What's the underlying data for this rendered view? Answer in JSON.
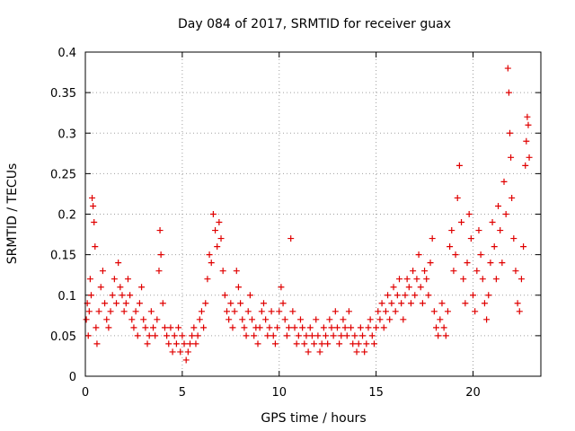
{
  "chart_data": {
    "type": "scatter",
    "title": "Day 084 of 2017, SRMTID for receiver guax",
    "xlabel": "GPS time / hours",
    "ylabel": "SRMTID / TECUs",
    "xlim": [
      0,
      23.5
    ],
    "ylim": [
      0,
      0.4
    ],
    "xticks": [
      0,
      5,
      10,
      15,
      20
    ],
    "xtick_labels": [
      "0",
      "5",
      "10",
      "15",
      "20"
    ],
    "yticks": [
      0,
      0.05,
      0.1,
      0.15,
      0.2,
      0.25,
      0.3,
      0.35,
      0.4
    ],
    "ytick_labels": [
      "0",
      "0.05",
      "0.1",
      "0.15",
      "0.2",
      "0.25",
      "0.3",
      "0.35",
      "0.4"
    ],
    "grid": true,
    "marker": "plus",
    "color": "#e00000",
    "series": [
      {
        "name": "SRMTID",
        "points": [
          [
            0.05,
            0.07
          ],
          [
            0.1,
            0.09
          ],
          [
            0.15,
            0.05
          ],
          [
            0.2,
            0.08
          ],
          [
            0.25,
            0.12
          ],
          [
            0.3,
            0.1
          ],
          [
            0.35,
            0.22
          ],
          [
            0.4,
            0.21
          ],
          [
            0.45,
            0.19
          ],
          [
            0.5,
            0.16
          ],
          [
            0.55,
            0.06
          ],
          [
            0.6,
            0.04
          ],
          [
            0.7,
            0.08
          ],
          [
            0.8,
            0.11
          ],
          [
            0.9,
            0.13
          ],
          [
            1.0,
            0.09
          ],
          [
            1.1,
            0.07
          ],
          [
            1.2,
            0.06
          ],
          [
            1.3,
            0.08
          ],
          [
            1.4,
            0.1
          ],
          [
            1.5,
            0.12
          ],
          [
            1.6,
            0.09
          ],
          [
            1.7,
            0.14
          ],
          [
            1.8,
            0.11
          ],
          [
            1.9,
            0.1
          ],
          [
            2.0,
            0.08
          ],
          [
            2.1,
            0.09
          ],
          [
            2.2,
            0.12
          ],
          [
            2.3,
            0.1
          ],
          [
            2.4,
            0.07
          ],
          [
            2.5,
            0.06
          ],
          [
            2.6,
            0.08
          ],
          [
            2.7,
            0.05
          ],
          [
            2.8,
            0.09
          ],
          [
            2.9,
            0.11
          ],
          [
            3.0,
            0.07
          ],
          [
            3.1,
            0.06
          ],
          [
            3.2,
            0.04
          ],
          [
            3.3,
            0.05
          ],
          [
            3.4,
            0.08
          ],
          [
            3.5,
            0.06
          ],
          [
            3.6,
            0.05
          ],
          [
            3.7,
            0.07
          ],
          [
            3.8,
            0.13
          ],
          [
            3.85,
            0.18
          ],
          [
            3.9,
            0.15
          ],
          [
            4.0,
            0.09
          ],
          [
            4.1,
            0.06
          ],
          [
            4.2,
            0.05
          ],
          [
            4.3,
            0.04
          ],
          [
            4.4,
            0.06
          ],
          [
            4.5,
            0.03
          ],
          [
            4.6,
            0.05
          ],
          [
            4.7,
            0.04
          ],
          [
            4.8,
            0.06
          ],
          [
            4.9,
            0.03
          ],
          [
            5.0,
            0.05
          ],
          [
            5.1,
            0.04
          ],
          [
            5.2,
            0.02
          ],
          [
            5.3,
            0.03
          ],
          [
            5.4,
            0.04
          ],
          [
            5.5,
            0.05
          ],
          [
            5.6,
            0.06
          ],
          [
            5.7,
            0.04
          ],
          [
            5.8,
            0.05
          ],
          [
            5.9,
            0.07
          ],
          [
            6.0,
            0.08
          ],
          [
            6.1,
            0.06
          ],
          [
            6.2,
            0.09
          ],
          [
            6.3,
            0.12
          ],
          [
            6.4,
            0.15
          ],
          [
            6.5,
            0.14
          ],
          [
            6.6,
            0.2
          ],
          [
            6.7,
            0.18
          ],
          [
            6.8,
            0.16
          ],
          [
            6.9,
            0.19
          ],
          [
            7.0,
            0.17
          ],
          [
            7.1,
            0.13
          ],
          [
            7.2,
            0.1
          ],
          [
            7.3,
            0.08
          ],
          [
            7.4,
            0.07
          ],
          [
            7.5,
            0.09
          ],
          [
            7.6,
            0.06
          ],
          [
            7.7,
            0.08
          ],
          [
            7.8,
            0.13
          ],
          [
            7.9,
            0.11
          ],
          [
            8.0,
            0.09
          ],
          [
            8.1,
            0.07
          ],
          [
            8.2,
            0.06
          ],
          [
            8.3,
            0.05
          ],
          [
            8.4,
            0.08
          ],
          [
            8.5,
            0.1
          ],
          [
            8.6,
            0.07
          ],
          [
            8.7,
            0.05
          ],
          [
            8.8,
            0.06
          ],
          [
            8.9,
            0.04
          ],
          [
            9.0,
            0.06
          ],
          [
            9.1,
            0.08
          ],
          [
            9.2,
            0.09
          ],
          [
            9.3,
            0.07
          ],
          [
            9.4,
            0.05
          ],
          [
            9.5,
            0.06
          ],
          [
            9.6,
            0.08
          ],
          [
            9.7,
            0.05
          ],
          [
            9.8,
            0.04
          ],
          [
            9.9,
            0.06
          ],
          [
            10.0,
            0.08
          ],
          [
            10.1,
            0.11
          ],
          [
            10.2,
            0.09
          ],
          [
            10.3,
            0.07
          ],
          [
            10.4,
            0.05
          ],
          [
            10.5,
            0.06
          ],
          [
            10.6,
            0.17
          ],
          [
            10.7,
            0.08
          ],
          [
            10.8,
            0.06
          ],
          [
            10.9,
            0.04
          ],
          [
            11.0,
            0.05
          ],
          [
            11.1,
            0.07
          ],
          [
            11.2,
            0.06
          ],
          [
            11.3,
            0.04
          ],
          [
            11.4,
            0.05
          ],
          [
            11.5,
            0.03
          ],
          [
            11.6,
            0.06
          ],
          [
            11.7,
            0.05
          ],
          [
            11.8,
            0.04
          ],
          [
            11.9,
            0.07
          ],
          [
            12.0,
            0.05
          ],
          [
            12.1,
            0.03
          ],
          [
            12.2,
            0.04
          ],
          [
            12.3,
            0.06
          ],
          [
            12.4,
            0.05
          ],
          [
            12.5,
            0.04
          ],
          [
            12.6,
            0.07
          ],
          [
            12.7,
            0.06
          ],
          [
            12.8,
            0.05
          ],
          [
            12.9,
            0.08
          ],
          [
            13.0,
            0.06
          ],
          [
            13.1,
            0.04
          ],
          [
            13.2,
            0.05
          ],
          [
            13.3,
            0.07
          ],
          [
            13.4,
            0.06
          ],
          [
            13.5,
            0.05
          ],
          [
            13.6,
            0.08
          ],
          [
            13.7,
            0.06
          ],
          [
            13.8,
            0.04
          ],
          [
            13.9,
            0.05
          ],
          [
            14.0,
            0.03
          ],
          [
            14.1,
            0.04
          ],
          [
            14.2,
            0.06
          ],
          [
            14.3,
            0.05
          ],
          [
            14.4,
            0.03
          ],
          [
            14.5,
            0.04
          ],
          [
            14.6,
            0.06
          ],
          [
            14.7,
            0.07
          ],
          [
            14.8,
            0.05
          ],
          [
            14.9,
            0.04
          ],
          [
            15.0,
            0.06
          ],
          [
            15.1,
            0.08
          ],
          [
            15.2,
            0.07
          ],
          [
            15.3,
            0.09
          ],
          [
            15.4,
            0.06
          ],
          [
            15.5,
            0.08
          ],
          [
            15.6,
            0.1
          ],
          [
            15.7,
            0.07
          ],
          [
            15.8,
            0.09
          ],
          [
            15.9,
            0.11
          ],
          [
            16.0,
            0.08
          ],
          [
            16.1,
            0.1
          ],
          [
            16.2,
            0.12
          ],
          [
            16.3,
            0.09
          ],
          [
            16.4,
            0.07
          ],
          [
            16.5,
            0.1
          ],
          [
            16.6,
            0.12
          ],
          [
            16.7,
            0.11
          ],
          [
            16.8,
            0.09
          ],
          [
            16.9,
            0.13
          ],
          [
            17.0,
            0.1
          ],
          [
            17.1,
            0.12
          ],
          [
            17.2,
            0.15
          ],
          [
            17.3,
            0.11
          ],
          [
            17.4,
            0.09
          ],
          [
            17.5,
            0.13
          ],
          [
            17.6,
            0.12
          ],
          [
            17.7,
            0.1
          ],
          [
            17.8,
            0.14
          ],
          [
            17.9,
            0.17
          ],
          [
            18.0,
            0.08
          ],
          [
            18.1,
            0.06
          ],
          [
            18.2,
            0.05
          ],
          [
            18.3,
            0.07
          ],
          [
            18.4,
            0.09
          ],
          [
            18.5,
            0.06
          ],
          [
            18.6,
            0.05
          ],
          [
            18.7,
            0.08
          ],
          [
            18.8,
            0.16
          ],
          [
            18.9,
            0.18
          ],
          [
            19.0,
            0.13
          ],
          [
            19.1,
            0.15
          ],
          [
            19.2,
            0.22
          ],
          [
            19.3,
            0.26
          ],
          [
            19.4,
            0.19
          ],
          [
            19.5,
            0.12
          ],
          [
            19.6,
            0.09
          ],
          [
            19.7,
            0.14
          ],
          [
            19.8,
            0.2
          ],
          [
            19.9,
            0.17
          ],
          [
            20.0,
            0.1
          ],
          [
            20.1,
            0.08
          ],
          [
            20.2,
            0.13
          ],
          [
            20.3,
            0.18
          ],
          [
            20.4,
            0.15
          ],
          [
            20.5,
            0.12
          ],
          [
            20.6,
            0.09
          ],
          [
            20.7,
            0.07
          ],
          [
            20.8,
            0.1
          ],
          [
            20.9,
            0.14
          ],
          [
            21.0,
            0.19
          ],
          [
            21.1,
            0.16
          ],
          [
            21.2,
            0.12
          ],
          [
            21.3,
            0.21
          ],
          [
            21.4,
            0.18
          ],
          [
            21.5,
            0.14
          ],
          [
            21.6,
            0.24
          ],
          [
            21.7,
            0.2
          ],
          [
            21.8,
            0.38
          ],
          [
            21.85,
            0.35
          ],
          [
            21.9,
            0.3
          ],
          [
            21.95,
            0.27
          ],
          [
            22.0,
            0.22
          ],
          [
            22.1,
            0.17
          ],
          [
            22.2,
            0.13
          ],
          [
            22.3,
            0.09
          ],
          [
            22.4,
            0.08
          ],
          [
            22.5,
            0.12
          ],
          [
            22.6,
            0.16
          ],
          [
            22.7,
            0.26
          ],
          [
            22.75,
            0.29
          ],
          [
            22.8,
            0.32
          ],
          [
            22.85,
            0.31
          ],
          [
            22.9,
            0.27
          ]
        ]
      }
    ]
  }
}
